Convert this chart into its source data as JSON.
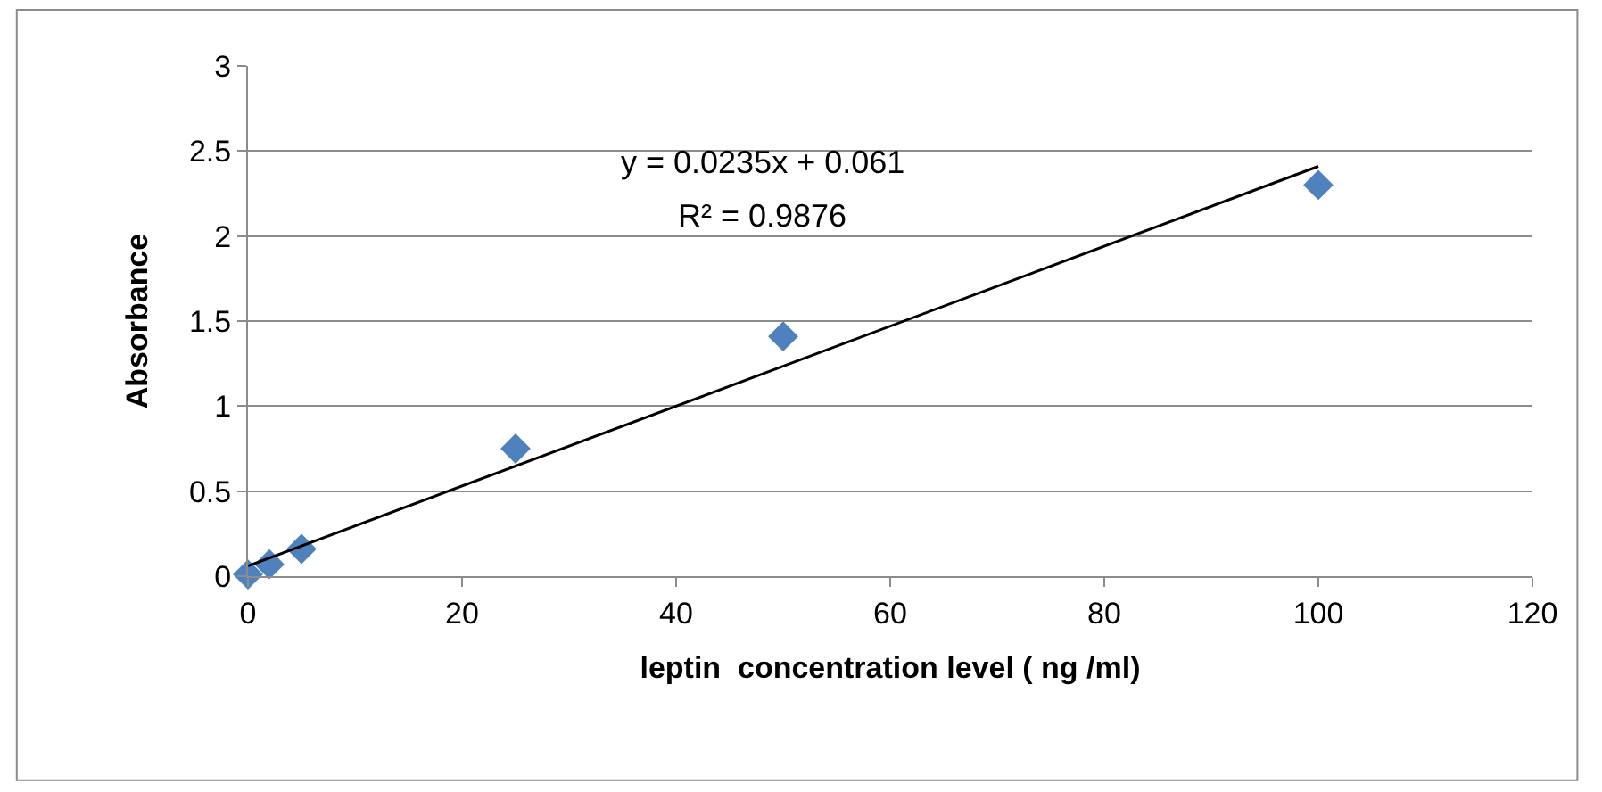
{
  "chart_data": {
    "type": "scatter",
    "xlabel": "leptin  concentration level ( ng /ml)",
    "ylabel": "Absorbance",
    "annotations": [
      "y = 0.0235x + 0.061",
      "R² = 0.9876"
    ],
    "series": [
      {
        "color": "#4f81bd",
        "marker": "diamond",
        "x": [
          0,
          2,
          5,
          25,
          50,
          100
        ],
        "values": [
          0.01,
          0.07,
          0.16,
          0.75,
          1.41,
          2.3
        ]
      },
      {
        "type": "line",
        "color": "#000000",
        "marker": "none",
        "line_style": "solid",
        "x": [
          0,
          100
        ],
        "values": [
          0.06,
          2.41
        ]
      }
    ],
    "xlim": [
      0,
      120
    ],
    "xticks": [
      0,
      20,
      40,
      60,
      80,
      100,
      120
    ],
    "ylim": [
      0,
      3
    ],
    "yticks": [
      0,
      0.5,
      1,
      1.5,
      2,
      2.5,
      3
    ],
    "grid": "y"
  }
}
